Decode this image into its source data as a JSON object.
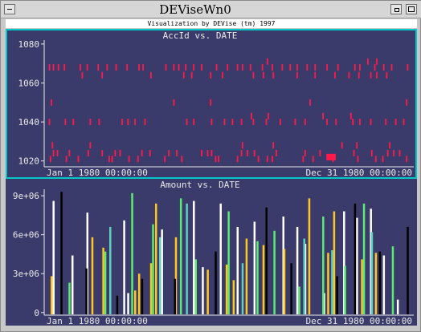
{
  "window": {
    "title": "DEViseWn0",
    "banner": "Visualization by DEVise (tm) 1997"
  },
  "colors": {
    "background": "#3b3b6b",
    "axis": "#e8e8e8",
    "highlight_border": "#00c8c8",
    "points": "#ff1a4b"
  },
  "chart_data": [
    {
      "type": "scatter",
      "title": "AccId vs. DATE",
      "xlabel": "",
      "ylabel": "",
      "x_tick_labels": [
        "Jan  1 1980 00:00:00",
        "Dec 31 1980 00:00:00"
      ],
      "x_domain": [
        "1980-01-01",
        "1980-12-31"
      ],
      "ylim": [
        1017,
        1082
      ],
      "y_ticks": [
        1020,
        1040,
        1060,
        1080
      ],
      "y_tick_labels": [
        "1020",
        "1040",
        "1060",
        "1080"
      ],
      "color": "#ff1a4b",
      "rows": [
        {
          "y": 1068,
          "x": [
            "1980-01-03",
            "1980-01-07",
            "1980-01-12",
            "1980-01-18",
            "1980-02-03",
            "1980-02-10",
            "1980-02-21",
            "1980-03-01",
            "1980-03-10",
            "1980-03-21",
            "1980-04-02",
            "1980-04-06",
            "1980-04-29",
            "1980-05-07",
            "1980-05-12",
            "1980-05-19",
            "1980-05-27",
            "1980-06-04",
            "1980-06-19",
            "1980-06-30",
            "1980-07-10",
            "1980-07-15",
            "1980-07-23",
            "1980-08-04",
            "1980-08-14",
            "1980-08-24",
            "1980-09-01",
            "1980-09-08",
            "1980-09-18",
            "1980-09-26",
            "1980-10-08",
            "1980-10-19",
            "1980-11-05",
            "1980-11-10",
            "1980-11-25",
            "1980-12-04",
            "1980-12-12",
            "1980-12-28"
          ]
        },
        {
          "y": 1071,
          "x": [
            "1980-08-09",
            "1980-11-18",
            "1980-11-27"
          ]
        },
        {
          "y": 1064,
          "x": [
            "1980-02-05",
            "1980-02-25",
            "1980-04-14",
            "1980-05-17",
            "1980-05-25",
            "1980-06-13",
            "1980-06-25",
            "1980-07-26",
            "1980-08-05",
            "1980-08-15",
            "1980-09-08",
            "1980-09-26",
            "1980-10-16",
            "1980-10-30",
            "1980-11-09",
            "1980-11-21",
            "1980-11-27",
            "1980-12-07"
          ]
        },
        {
          "y": 1050,
          "x": [
            "1980-01-05",
            "1980-05-07",
            "1980-06-13",
            "1980-09-21",
            "1980-12-27"
          ]
        },
        {
          "y": 1040,
          "x": [
            "1980-01-03",
            "1980-01-19",
            "1980-01-27",
            "1980-02-13",
            "1980-02-22",
            "1980-03-16",
            "1980-03-22",
            "1980-03-29",
            "1980-04-08",
            "1980-05-20",
            "1980-05-27",
            "1980-06-14",
            "1980-06-27",
            "1980-07-05",
            "1980-07-14",
            "1980-07-26",
            "1980-08-08",
            "1980-08-22",
            "1980-09-06",
            "1980-09-16",
            "1980-10-08",
            "1980-10-17",
            "1980-11-03",
            "1980-11-10",
            "1980-11-21",
            "1980-12-06",
            "1980-12-16",
            "1980-12-24"
          ]
        },
        {
          "y": 1043,
          "x": [
            "1980-07-24",
            "1980-08-10",
            "1980-10-04",
            "1980-11-01"
          ]
        },
        {
          "y": 1028,
          "x": [
            "1980-01-06",
            "1980-02-13",
            "1980-07-15",
            "1980-08-15",
            "1980-10-23",
            "1980-11-07",
            "1980-12-10"
          ]
        },
        {
          "y": 1024,
          "x": [
            "1980-01-07",
            "1980-01-11",
            "1980-01-23",
            "1980-02-11",
            "1980-02-25",
            "1980-03-09",
            "1980-03-14",
            "1980-04-05",
            "1980-04-13",
            "1980-05-02",
            "1980-05-10",
            "1980-06-04",
            "1980-06-10",
            "1980-06-14",
            "1980-07-14",
            "1980-07-20",
            "1980-07-27",
            "1980-08-18",
            "1980-09-16",
            "1980-10-01",
            "1980-11-04",
            "1980-11-22",
            "1980-12-08",
            "1980-12-14",
            "1980-12-20"
          ]
        },
        {
          "y": 1021,
          "x": [
            "1980-01-04",
            "1980-01-20",
            "1980-02-01",
            "1980-03-03",
            "1980-03-06",
            "1980-03-23",
            "1980-04-01",
            "1980-04-28",
            "1980-05-15",
            "1980-06-18",
            "1980-06-21",
            "1980-07-10",
            "1980-07-31",
            "1980-08-09",
            "1980-08-14",
            "1980-09-14",
            "1980-09-24",
            "1980-10-14",
            "1980-11-08",
            "1980-11-26",
            "1980-12-03",
            "1980-12-27"
          ]
        },
        {
          "y": 1022,
          "x": [
            "1980-10-08",
            "1980-10-09",
            "1980-10-10",
            "1980-10-11",
            "1980-10-12",
            "1980-10-13",
            "1980-10-14",
            "1980-10-15",
            "1980-10-16"
          ]
        }
      ]
    },
    {
      "type": "bar",
      "title": "Amount vs. DATE",
      "xlabel": "",
      "ylabel": "",
      "x_tick_labels": [
        "Jan  1 1980 00:00:00",
        "Dec 31 1980 00:00:00"
      ],
      "x_domain": [
        "1980-01-01",
        "1980-12-31"
      ],
      "ylim": [
        -200000,
        9500000
      ],
      "y_ticks": [
        0,
        3000000,
        6000000,
        9000000
      ],
      "y_tick_labels": [
        "0",
        "3e+06",
        "6e+06",
        "9e+06"
      ],
      "series": [
        {
          "color": "#ffffff",
          "bars": [
            [
              "1980-01-07",
              8600000
            ],
            [
              "1980-01-26",
              4400000
            ],
            [
              "1980-02-10",
              7700000
            ],
            [
              "1980-03-18",
              7100000
            ],
            [
              "1980-03-22",
              1500000
            ],
            [
              "1980-04-25",
              6400000
            ],
            [
              "1980-05-27",
              8600000
            ],
            [
              "1980-06-05",
              3500000
            ],
            [
              "1980-06-23",
              8400000
            ],
            [
              "1980-07-10",
              6600000
            ],
            [
              "1980-07-27",
              7000000
            ],
            [
              "1980-08-25",
              7400000
            ],
            [
              "1980-09-08",
              6600000
            ],
            [
              "1980-09-16",
              5300000
            ],
            [
              "1980-10-05",
              1500000
            ],
            [
              "1980-10-25",
              7800000
            ],
            [
              "1980-11-07",
              7300000
            ],
            [
              "1980-11-21",
              8000000
            ],
            [
              "1980-12-04",
              4400000
            ],
            [
              "1980-12-18",
              1000000
            ]
          ]
        },
        {
          "color": "#ffc820",
          "bars": [
            [
              "1980-01-05",
              2800000
            ],
            [
              "1980-02-15",
              5800000
            ],
            [
              "1980-02-26",
              5000000
            ],
            [
              "1980-03-29",
              1700000
            ],
            [
              "1980-04-02",
              3000000
            ],
            [
              "1980-04-14",
              3800000
            ],
            [
              "1980-04-19",
              8400000
            ],
            [
              "1980-05-09",
              5800000
            ],
            [
              "1980-06-10",
              3300000
            ],
            [
              "1980-06-29",
              3700000
            ],
            [
              "1980-07-06",
              2500000
            ],
            [
              "1980-07-19",
              5700000
            ],
            [
              "1980-08-05",
              5200000
            ],
            [
              "1980-08-26",
              4900000
            ],
            [
              "1980-09-20",
              8800000
            ],
            [
              "1980-10-09",
              4600000
            ],
            [
              "1980-10-15",
              7800000
            ],
            [
              "1980-11-12",
              4100000
            ],
            [
              "1980-11-26",
              4600000
            ]
          ]
        },
        {
          "color": "#5aeb73",
          "bars": [
            [
              "1980-01-23",
              2300000
            ],
            [
              "1980-02-28",
              4700000
            ],
            [
              "1980-03-26",
              9200000
            ],
            [
              "1980-04-16",
              6800000
            ],
            [
              "1980-05-14",
              8800000
            ],
            [
              "1980-05-29",
              4100000
            ],
            [
              "1980-07-01",
              7800000
            ],
            [
              "1980-07-30",
              5500000
            ],
            [
              "1980-08-16",
              6300000
            ],
            [
              "1980-09-10",
              2000000
            ],
            [
              "1980-10-04",
              7400000
            ],
            [
              "1980-10-26",
              3600000
            ],
            [
              "1980-11-14",
              8400000
            ],
            [
              "1980-12-13",
              5100000
            ]
          ]
        },
        {
          "color": "#000000",
          "bars": [
            [
              "1980-01-15",
              9300000
            ],
            [
              "1980-02-09",
              3400000
            ],
            [
              "1980-03-11",
              1300000
            ],
            [
              "1980-04-05",
              2600000
            ],
            [
              "1980-05-08",
              2600000
            ],
            [
              "1980-06-18",
              4700000
            ],
            [
              "1980-08-08",
              8100000
            ],
            [
              "1980-09-02",
              3800000
            ],
            [
              "1980-10-18",
              2800000
            ],
            [
              "1980-11-05",
              8400000
            ],
            [
              "1980-11-30",
              4700000
            ],
            [
              "1980-12-28",
              6600000
            ]
          ]
        },
        {
          "color": "#60d0c0",
          "bars": [
            [
              "1980-03-04",
              6600000
            ],
            [
              "1980-04-23",
              5800000
            ],
            [
              "1980-05-20",
              8400000
            ],
            [
              "1980-07-15",
              3800000
            ],
            [
              "1980-09-15",
              5700000
            ],
            [
              "1980-10-13",
              4800000
            ],
            [
              "1980-11-22",
              6200000
            ]
          ]
        }
      ]
    }
  ]
}
